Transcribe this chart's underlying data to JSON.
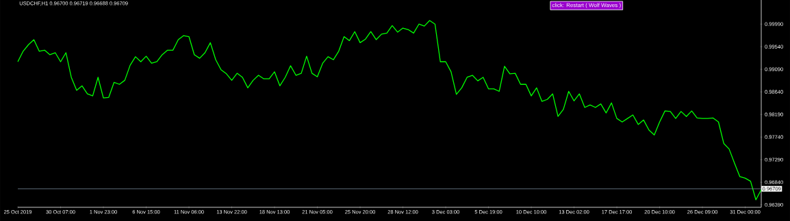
{
  "chart_data": {
    "type": "line",
    "title": "USDCHF,H1  0.96700 0.96719 0.96688 0.96709",
    "annotations": [
      "click: Restart ( Wolf Waves )"
    ],
    "categories": [
      "25 Oct 2019",
      null,
      null,
      null,
      null,
      null,
      null,
      null,
      "30 Oct 07:00",
      null,
      null,
      null,
      null,
      null,
      null,
      null,
      "1 Nov 23:00",
      null,
      null,
      null,
      null,
      null,
      null,
      null,
      "6 Nov 15:00",
      null,
      null,
      null,
      null,
      null,
      null,
      null,
      "11 Nov 06:00",
      null,
      null,
      null,
      null,
      null,
      null,
      null,
      "13 Nov 22:00",
      null,
      null,
      null,
      null,
      null,
      null,
      null,
      "18 Nov 13:00",
      null,
      null,
      null,
      null,
      null,
      null,
      null,
      "21 Nov 05:00",
      null,
      null,
      null,
      null,
      null,
      null,
      null,
      "25 Nov 20:00",
      null,
      null,
      null,
      null,
      null,
      null,
      null,
      "28 Nov 12:00",
      null,
      null,
      null,
      null,
      null,
      null,
      null,
      "3 Dec 03:00",
      null,
      null,
      null,
      null,
      null,
      null,
      null,
      "5 Dec 19:00",
      null,
      null,
      null,
      null,
      null,
      null,
      null,
      "10 Dec 10:00",
      null,
      null,
      null,
      null,
      null,
      null,
      null,
      "13 Dec 02:00",
      null,
      null,
      null,
      null,
      null,
      null,
      null,
      "17 Dec 17:00",
      null,
      null,
      null,
      null,
      null,
      null,
      null,
      "20 Dec 10:00",
      null,
      null,
      null,
      null,
      null,
      null,
      null,
      "26 Dec 09:00",
      null,
      null,
      null,
      null,
      null,
      null,
      null,
      "31 Dec 00:00",
      null,
      null,
      null
    ],
    "series": [
      {
        "color": "#00ff00",
        "values": [
          0.9924,
          0.9945,
          0.9958,
          0.9968,
          0.9945,
          0.9947,
          0.9938,
          0.9942,
          0.9924,
          0.9942,
          0.9893,
          0.9867,
          0.9876,
          0.986,
          0.9856,
          0.9893,
          0.9852,
          0.9853,
          0.9883,
          0.9879,
          0.9887,
          0.9917,
          0.9934,
          0.9924,
          0.9935,
          0.9921,
          0.9924,
          0.9938,
          0.9947,
          0.9947,
          0.9968,
          0.9976,
          0.9974,
          0.9938,
          0.9931,
          0.9942,
          0.9962,
          0.9928,
          0.9908,
          0.99,
          0.9887,
          0.9901,
          0.9893,
          0.9872,
          0.9887,
          0.9897,
          0.989,
          0.989,
          0.9904,
          0.9876,
          0.9893,
          0.9916,
          0.9897,
          0.9901,
          0.9935,
          0.9901,
          0.9894,
          0.9921,
          0.9934,
          0.9928,
          0.9945,
          0.9974,
          0.9966,
          0.9984,
          0.9962,
          0.9969,
          0.9984,
          0.9968,
          0.9979,
          0.9981,
          0.9996,
          0.9983,
          0.9991,
          0.9988,
          0.9981,
          0.9999,
          0.9995,
          1.0006,
          0.9999,
          0.9924,
          0.9924,
          0.9904,
          0.9859,
          0.9872,
          0.9893,
          0.9897,
          0.9886,
          0.9893,
          0.987,
          0.987,
          0.9865,
          0.9915,
          0.99,
          0.9901,
          0.9879,
          0.9879,
          0.9856,
          0.9872,
          0.9845,
          0.9849,
          0.986,
          0.9815,
          0.9829,
          0.9865,
          0.9846,
          0.986,
          0.9833,
          0.9838,
          0.9833,
          0.984,
          0.9822,
          0.9842,
          0.9811,
          0.9804,
          0.9811,
          0.9818,
          0.9799,
          0.9808,
          0.9788,
          0.9778,
          0.9804,
          0.9826,
          0.9825,
          0.9811,
          0.9825,
          0.9815,
          0.9826,
          0.9812,
          0.9811,
          0.9811,
          0.9812,
          0.9804,
          0.9761,
          0.975,
          0.9722,
          0.9695,
          0.9692,
          0.9686,
          0.9649,
          0.9669
        ]
      }
    ],
    "ylim": [
      0.9634,
      1.0047
    ],
    "yticks": [
      {
        "value": 0.9999,
        "label": "0.99990"
      },
      {
        "value": 0.9954,
        "label": "0.99540"
      },
      {
        "value": 0.9909,
        "label": "0.99090"
      },
      {
        "value": 0.9864,
        "label": "0.98640"
      },
      {
        "value": 0.9819,
        "label": "0.98190"
      },
      {
        "value": 0.9774,
        "label": "0.97740"
      },
      {
        "value": 0.9729,
        "label": "0.97290"
      },
      {
        "value": 0.9684,
        "label": "0.96840"
      },
      {
        "value": 0.9639,
        "label": "0.96390"
      }
    ],
    "ref_lines": [
      {
        "axis": "y",
        "value": 0.96709,
        "label": "0.96709",
        "color": "#778899"
      }
    ]
  }
}
